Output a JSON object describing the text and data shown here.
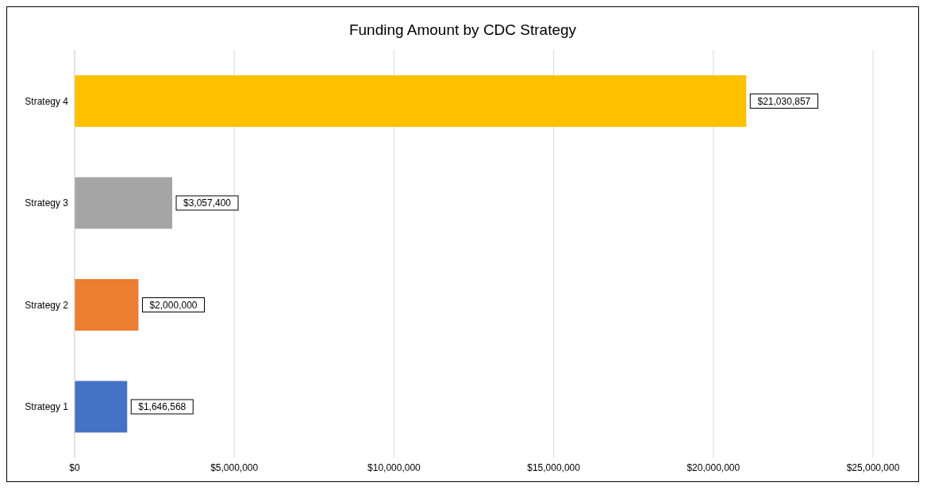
{
  "chart_data": {
    "type": "bar",
    "orientation": "horizontal",
    "title": "Funding Amount by CDC Strategy",
    "categories": [
      "Strategy 4",
      "Strategy 3",
      "Strategy 2",
      "Strategy 1"
    ],
    "values": [
      21030857,
      3057400,
      2000000,
      1646568
    ],
    "colors": [
      "#ffc000",
      "#a5a5a5",
      "#ed7d31",
      "#4472c4"
    ],
    "value_labels": [
      "$21,030,857",
      "$3,057,400",
      "$2,000,000",
      "$1,646,568"
    ],
    "xlim": [
      0,
      25000000
    ],
    "xticks": [
      {
        "value": 0,
        "label": "$0"
      },
      {
        "value": 5000000,
        "label": "$5,000,000"
      },
      {
        "value": 10000000,
        "label": "$10,000,000"
      },
      {
        "value": 15000000,
        "label": "$15,000,000"
      },
      {
        "value": 20000000,
        "label": "$20,000,000"
      },
      {
        "value": 25000000,
        "label": "$25,000,000"
      }
    ],
    "grid": "x"
  }
}
